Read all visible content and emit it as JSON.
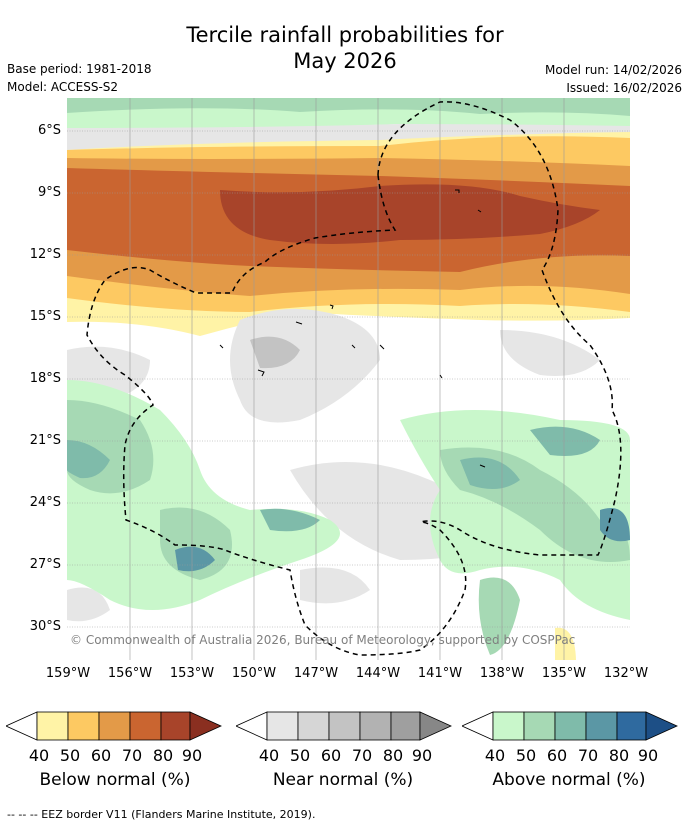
{
  "title_line1": "Tercile rainfall probabilities for",
  "title_line2": "May 2026",
  "base_period": "Base period: 1981-2018",
  "model": "Model: ACCESS-S2",
  "model_run": "Model run: 14/02/2026",
  "issued": "Issued: 16/02/2026",
  "copyright": "© Commonwealth of Australia 2026, Bureau of Meteorology, supported by COSPPac",
  "footer": "-- -- -- EEZ border V11 (Flanders Marine Institute, 2019).",
  "lat_labels": [
    "6°S",
    "9°S",
    "12°S",
    "15°S",
    "18°S",
    "21°S",
    "24°S",
    "27°S",
    "30°S"
  ],
  "lon_labels": [
    "159°W",
    "156°W",
    "153°W",
    "150°W",
    "147°W",
    "144°W",
    "141°W",
    "138°W",
    "135°W",
    "132°W"
  ],
  "colorbars": [
    {
      "label": "Below normal (%)",
      "ticks": [
        "40",
        "50",
        "60",
        "70",
        "80",
        "90"
      ],
      "colors": [
        "#fff3a6",
        "#fdc962",
        "#e39a48",
        "#ca6530",
        "#a8442a",
        "#8a2f20"
      ]
    },
    {
      "label": "Near normal (%)",
      "ticks": [
        "40",
        "50",
        "60",
        "70",
        "80",
        "90"
      ],
      "colors": [
        "#e6e6e6",
        "#d6d6d6",
        "#c3c3c3",
        "#b2b2b2",
        "#9f9f9f",
        "#878787"
      ]
    },
    {
      "label": "Above normal (%)",
      "ticks": [
        "40",
        "50",
        "60",
        "70",
        "80",
        "90"
      ],
      "colors": [
        "#c9f7cb",
        "#a6d9b4",
        "#7fbbaa",
        "#5b97a5",
        "#2f6a9f",
        "#1d4f86"
      ]
    }
  ]
}
